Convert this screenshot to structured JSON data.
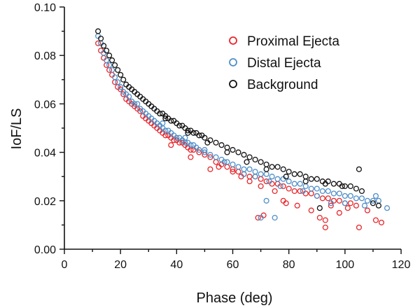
{
  "chart_data": {
    "type": "scatter",
    "title": "",
    "xlabel": "Phase (deg)",
    "ylabel": "IoF/LS",
    "xlim": [
      0,
      120
    ],
    "ylim": [
      0.0,
      0.1
    ],
    "x_ticks": [
      "0",
      "20",
      "40",
      "60",
      "80",
      "100",
      "120"
    ],
    "y_ticks": [
      "0.00",
      "0.02",
      "0.04",
      "0.06",
      "0.08",
      "0.10"
    ],
    "legend_position": "top-right",
    "series": [
      {
        "name": "Proximal Ejecta",
        "color": "#e8262b",
        "x": [
          12.0,
          13.0,
          14.0,
          15.0,
          16.0,
          17.0,
          18.0,
          19.0,
          20.0,
          21.0,
          22.0,
          23.0,
          24.0,
          25.0,
          26.0,
          27.0,
          28.0,
          29.0,
          30.0,
          31.0,
          32.0,
          33.0,
          34.0,
          35.0,
          36.0,
          37.0,
          38.0,
          39.0,
          40.0,
          41.0,
          42.0,
          43.0,
          44.0,
          45.0,
          46.0,
          48.0,
          50.0,
          52.0,
          54.0,
          56.0,
          58.0,
          60.0,
          62.0,
          64.0,
          66.0,
          68.0,
          70.0,
          72.0,
          74.0,
          76.0,
          78.0,
          80.0,
          82.0,
          84.0,
          86.0,
          88.0,
          90.0,
          92.0,
          94.0,
          96.0,
          98.0,
          100.0,
          102.0,
          104.0,
          38.0,
          45.0,
          52.0,
          55.0,
          60.0,
          63.0,
          66.0,
          70.0,
          75.0,
          79.0,
          83.0,
          88.0,
          91.0,
          93.0,
          95.0,
          98.0,
          101.0,
          105.0,
          108.0,
          111.0,
          113.0,
          69.0,
          71.0,
          78.0,
          93.0
        ],
        "y": [
          0.085,
          0.082,
          0.079,
          0.076,
          0.074,
          0.072,
          0.069,
          0.067,
          0.066,
          0.064,
          0.062,
          0.061,
          0.06,
          0.059,
          0.058,
          0.057,
          0.055,
          0.054,
          0.053,
          0.052,
          0.051,
          0.05,
          0.049,
          0.048,
          0.047,
          0.047,
          0.046,
          0.045,
          0.045,
          0.044,
          0.044,
          0.043,
          0.042,
          0.041,
          0.041,
          0.04,
          0.039,
          0.038,
          0.036,
          0.035,
          0.034,
          0.033,
          0.032,
          0.031,
          0.03,
          0.03,
          0.029,
          0.028,
          0.027,
          0.027,
          0.026,
          0.025,
          0.024,
          0.024,
          0.023,
          0.023,
          0.022,
          0.021,
          0.021,
          0.02,
          0.02,
          0.019,
          0.019,
          0.018,
          0.043,
          0.038,
          0.033,
          0.034,
          0.032,
          0.03,
          0.028,
          0.026,
          0.024,
          0.019,
          0.018,
          0.016,
          0.013,
          0.012,
          0.018,
          0.015,
          0.017,
          0.009,
          0.016,
          0.012,
          0.011,
          0.013,
          0.014,
          0.02,
          0.009
        ]
      },
      {
        "name": "Distal Ejecta",
        "color": "#4f8fc8",
        "x": [
          12.0,
          13.0,
          14.0,
          15.0,
          16.0,
          17.0,
          18.0,
          19.0,
          20.0,
          21.0,
          22.0,
          23.0,
          24.0,
          25.0,
          26.0,
          27.0,
          28.0,
          29.0,
          30.0,
          31.0,
          32.0,
          33.0,
          34.0,
          35.0,
          36.0,
          37.0,
          38.0,
          39.0,
          40.0,
          41.0,
          42.0,
          43.0,
          44.0,
          45.0,
          46.0,
          47.0,
          48.0,
          50.0,
          52.0,
          54.0,
          56.0,
          58.0,
          60.0,
          62.0,
          64.0,
          66.0,
          68.0,
          70.0,
          72.0,
          74.0,
          76.0,
          78.0,
          80.0,
          82.0,
          84.0,
          86.0,
          88.0,
          90.0,
          92.0,
          94.0,
          96.0,
          98.0,
          100.0,
          102.0,
          104.0,
          106.0,
          108.0,
          110.0,
          112.0,
          35.0,
          43.0,
          50.0,
          57.0,
          64.0,
          68.0,
          73.0,
          77.0,
          85.0,
          90.0,
          95.0,
          100.0,
          107.0,
          111.0,
          115.0,
          70.0,
          72.0,
          75.0
        ],
        "y": [
          0.088,
          0.085,
          0.081,
          0.078,
          0.076,
          0.074,
          0.071,
          0.069,
          0.067,
          0.065,
          0.064,
          0.063,
          0.061,
          0.06,
          0.06,
          0.058,
          0.057,
          0.056,
          0.055,
          0.054,
          0.053,
          0.052,
          0.051,
          0.05,
          0.049,
          0.049,
          0.048,
          0.047,
          0.046,
          0.046,
          0.045,
          0.044,
          0.044,
          0.043,
          0.043,
          0.042,
          0.041,
          0.04,
          0.039,
          0.038,
          0.037,
          0.036,
          0.035,
          0.034,
          0.033,
          0.033,
          0.032,
          0.031,
          0.031,
          0.03,
          0.029,
          0.029,
          0.028,
          0.027,
          0.027,
          0.026,
          0.025,
          0.025,
          0.024,
          0.024,
          0.023,
          0.023,
          0.022,
          0.022,
          0.021,
          0.021,
          0.02,
          0.02,
          0.02,
          0.052,
          0.046,
          0.041,
          0.036,
          0.031,
          0.03,
          0.028,
          0.026,
          0.024,
          0.022,
          0.019,
          0.019,
          0.018,
          0.022,
          0.017,
          0.013,
          0.02,
          0.013
        ]
      },
      {
        "name": "Background",
        "color": "#111111",
        "x": [
          12.0,
          13.0,
          14.0,
          15.0,
          16.0,
          17.0,
          18.0,
          19.0,
          20.0,
          21.0,
          22.0,
          23.0,
          24.0,
          25.0,
          26.0,
          27.0,
          28.0,
          29.0,
          30.0,
          31.0,
          32.0,
          33.0,
          34.0,
          35.0,
          36.0,
          37.0,
          38.0,
          39.0,
          40.0,
          41.0,
          42.0,
          43.0,
          44.0,
          45.0,
          46.0,
          47.0,
          48.0,
          49.0,
          50.0,
          52.0,
          54.0,
          56.0,
          58.0,
          60.0,
          62.0,
          64.0,
          66.0,
          68.0,
          70.0,
          72.0,
          74.0,
          76.0,
          78.0,
          80.0,
          82.0,
          84.0,
          86.0,
          88.0,
          90.0,
          92.0,
          94.0,
          96.0,
          98.0,
          100.0,
          102.0,
          104.0,
          106.0,
          110.0,
          112.0,
          36.0,
          44.0,
          51.0,
          58.0,
          65.0,
          72.0,
          79.0,
          86.0,
          93.0,
          99.0,
          105.0,
          91.0
        ],
        "y": [
          0.09,
          0.087,
          0.084,
          0.082,
          0.08,
          0.078,
          0.076,
          0.074,
          0.072,
          0.07,
          0.068,
          0.067,
          0.066,
          0.065,
          0.064,
          0.063,
          0.062,
          0.061,
          0.06,
          0.059,
          0.058,
          0.057,
          0.056,
          0.056,
          0.055,
          0.054,
          0.053,
          0.053,
          0.052,
          0.051,
          0.051,
          0.05,
          0.049,
          0.049,
          0.048,
          0.048,
          0.047,
          0.047,
          0.046,
          0.045,
          0.044,
          0.043,
          0.042,
          0.041,
          0.04,
          0.039,
          0.038,
          0.037,
          0.036,
          0.035,
          0.034,
          0.034,
          0.033,
          0.032,
          0.031,
          0.031,
          0.03,
          0.029,
          0.029,
          0.028,
          0.028,
          0.027,
          0.027,
          0.026,
          0.026,
          0.025,
          0.024,
          0.019,
          0.018,
          0.054,
          0.048,
          0.044,
          0.04,
          0.036,
          0.033,
          0.03,
          0.028,
          0.027,
          0.026,
          0.033,
          0.017
        ]
      }
    ]
  }
}
